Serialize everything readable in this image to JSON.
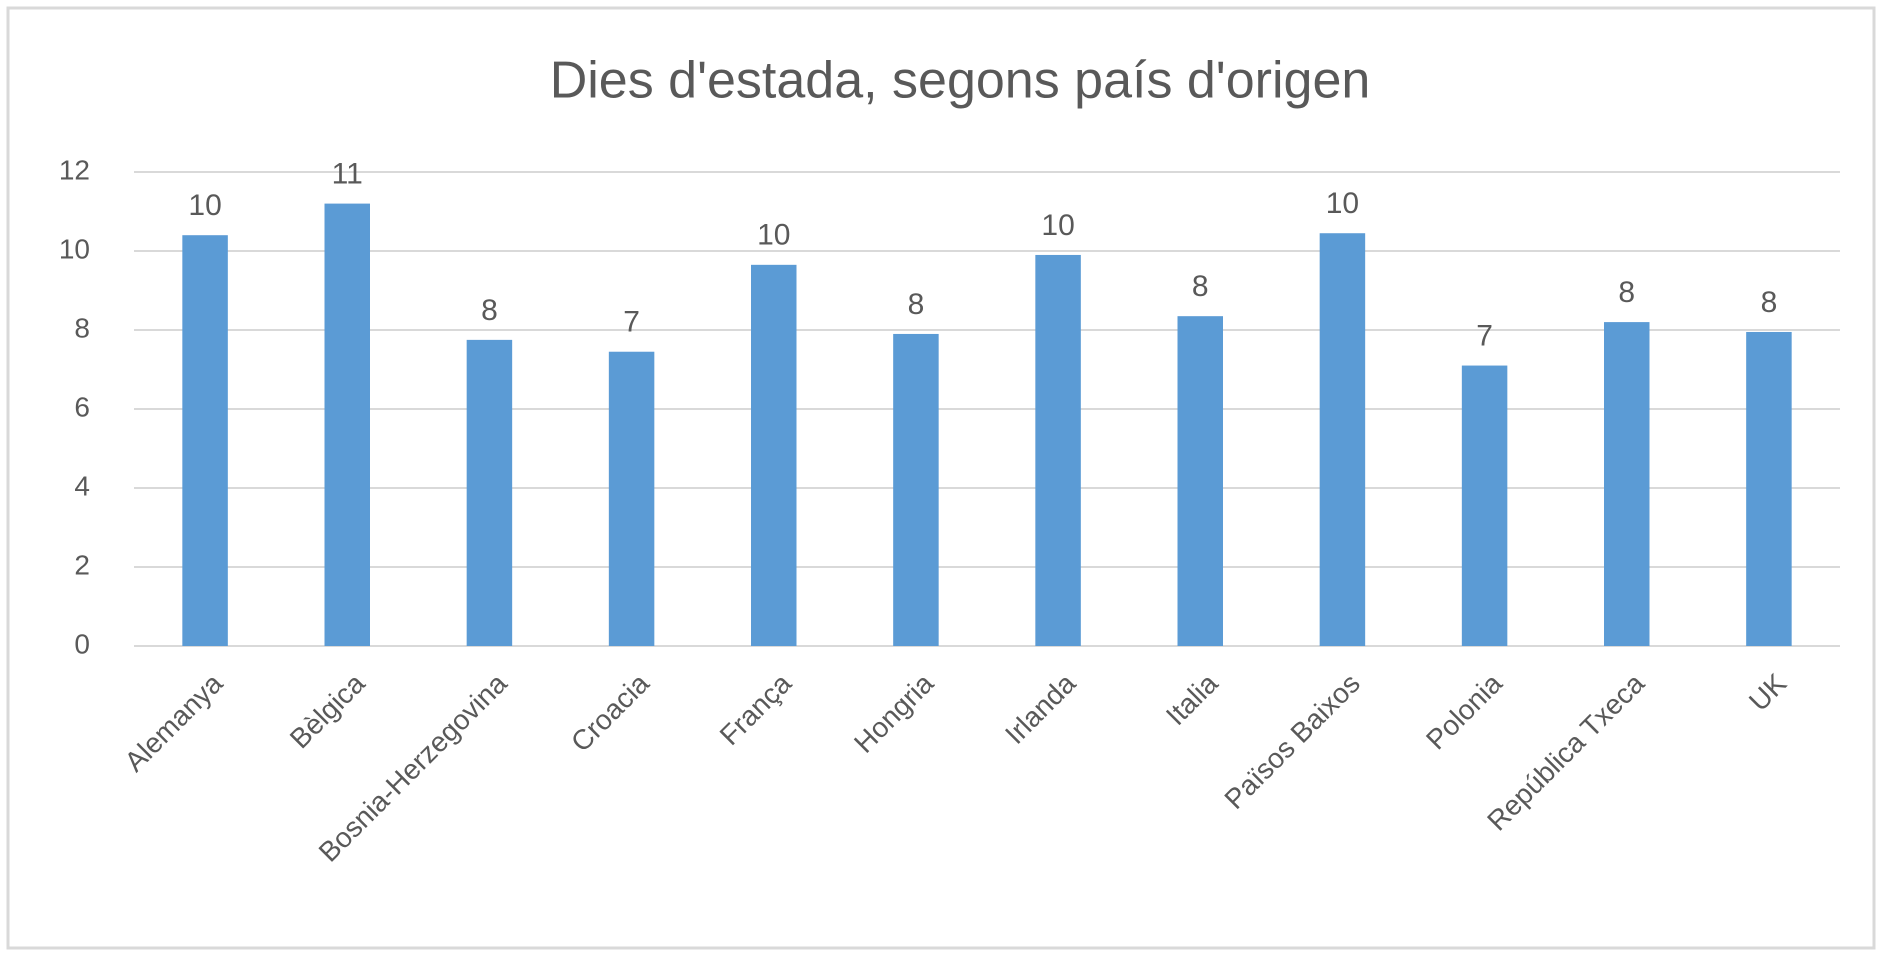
{
  "chart_data": {
    "type": "bar",
    "title": "Dies d'estada, segons país d'origen",
    "categories": [
      "Alemanya",
      "Bèlgica",
      "Bosnia-Herzegovina",
      "Croacia",
      "França",
      "Hongria",
      "Irlanda",
      "Italia",
      "Països Baixos",
      "Polonia",
      "República Txeca",
      "UK"
    ],
    "values": [
      10.4,
      11.2,
      7.75,
      7.45,
      9.65,
      7.9,
      9.9,
      8.35,
      10.45,
      7.1,
      8.2,
      7.95
    ],
    "value_labels": [
      "10",
      "11",
      "8",
      "7",
      "10",
      "8",
      "10",
      "8",
      "10",
      "7",
      "8",
      "8"
    ],
    "color": "#5b9bd5",
    "ylim": [
      0,
      12
    ],
    "yticks": [
      0,
      2,
      4,
      6,
      8,
      10,
      12
    ],
    "grid": true
  }
}
